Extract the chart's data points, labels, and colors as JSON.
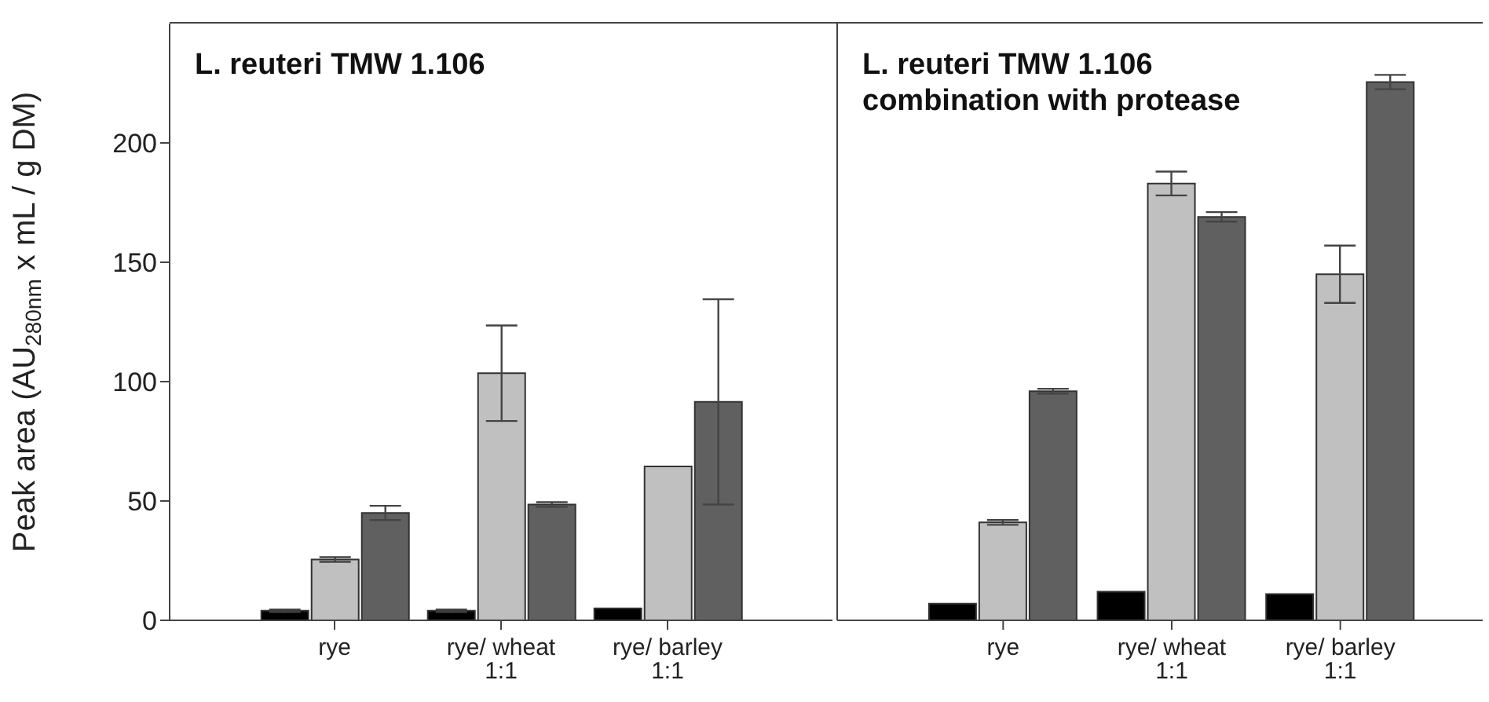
{
  "chart_data": [
    {
      "type": "bar",
      "title": "L. reuteri TMW 1.106",
      "ylabel": "Peak area (AU$_{280nm}$ x mL / g DM)",
      "categories": [
        "rye",
        "rye/ wheat 1:1",
        "rye/ barley 1:1"
      ],
      "ylim": [
        0,
        250
      ],
      "yticks": [
        0,
        50,
        100,
        150,
        200
      ],
      "grid": false,
      "legend": false,
      "series": [
        {
          "color": "#000000",
          "values": [
            4,
            4,
            5
          ],
          "errors": [
            0.5,
            0.5,
            null
          ]
        },
        {
          "color": "#c0c0c0",
          "values": [
            25.5,
            103.5,
            64.5
          ],
          "errors": [
            1,
            20,
            null
          ]
        },
        {
          "color": "#606060",
          "values": [
            45,
            48.5,
            91.5
          ],
          "errors": [
            3,
            1,
            43
          ]
        }
      ]
    },
    {
      "type": "bar",
      "title": "L. reuteri TMW 1.106 combination with protease",
      "categories": [
        "rye",
        "rye/ wheat 1:1",
        "rye/ barley 1:1"
      ],
      "ylim": [
        0,
        250
      ],
      "yticks": [
        0,
        50,
        100,
        150,
        200
      ],
      "tick_labels": "x",
      "grid": false,
      "legend": false,
      "series": [
        {
          "color": "#000000",
          "values": [
            7,
            12,
            11
          ],
          "errors": [
            null,
            null,
            null
          ]
        },
        {
          "color": "#c0c0c0",
          "values": [
            41,
            183,
            145
          ],
          "errors": [
            1,
            5,
            12
          ]
        },
        {
          "color": "#606060",
          "values": [
            96,
            169,
            225.5
          ],
          "errors": [
            1,
            2,
            3
          ]
        }
      ]
    }
  ]
}
